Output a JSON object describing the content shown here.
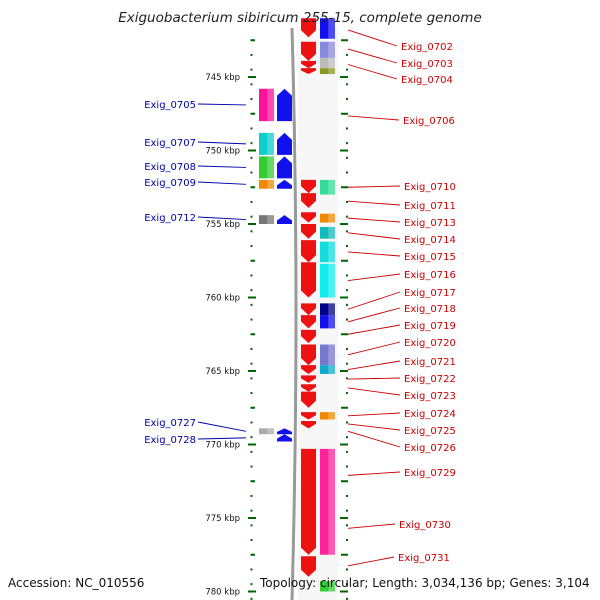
{
  "title": "Exiguobacterium sibiricum 255-15, complete genome",
  "accession_label": "Accession: NC_010556",
  "topology_label": "Topology: circular; Length: 3,034,136 bp; Genes: 3,104",
  "colors": {
    "reverse_label": "#cc0000",
    "forward_label": "#0000aa",
    "ruler": "#006400",
    "backbone": "#999999"
  },
  "scale": {
    "unit": "kbp",
    "ticks": [
      {
        "kbp": 745,
        "label": "745 kbp"
      },
      {
        "kbp": 750,
        "label": "750 kbp"
      },
      {
        "kbp": 755,
        "label": "755 kbp"
      },
      {
        "kbp": 760,
        "label": "760 kbp"
      },
      {
        "kbp": 765,
        "label": "765 kbp"
      },
      {
        "kbp": 770,
        "label": "770 kbp"
      },
      {
        "kbp": 775,
        "label": "775 kbp"
      },
      {
        "kbp": 780,
        "label": "780 kbp"
      }
    ]
  },
  "reverse_genes": [
    {
      "label": "Exig_0702",
      "start": 741.2,
      "end": 742.4,
      "color": "#1010ee"
    },
    {
      "label": "Exig_0703",
      "start": 742.6,
      "end": 743.6,
      "color": "#8888dd"
    },
    {
      "label": "Exig_0704",
      "start": 743.7,
      "end": 744.6,
      "color": "#bbbbbb"
    },
    {
      "label": "Exig_0706",
      "start": 747.4,
      "end": 747.9,
      "color": "#ee1111"
    },
    {
      "label": "Exig_0710",
      "start": 752.0,
      "end": 753.0,
      "color": "#33dd99"
    },
    {
      "label": "Exig_0711",
      "start": 753.0,
      "end": 753.9,
      "color": "#ee1111"
    },
    {
      "label": "Exig_0713",
      "start": 754.3,
      "end": 754.9,
      "color": "#ee8800"
    },
    {
      "label": "Exig_0714",
      "start": 755.2,
      "end": 756.0,
      "color": "#11bbbb"
    },
    {
      "label": "Exig_0715",
      "start": 756.2,
      "end": 757.6,
      "color": "#11dddd"
    },
    {
      "label": "Exig_0716",
      "start": 757.7,
      "end": 760.0,
      "color": "#11eeee"
    },
    {
      "label": "Exig_0717",
      "start": 760.4,
      "end": 761.2,
      "color": "#000088"
    },
    {
      "label": "Exig_0718",
      "start": 761.2,
      "end": 762.1,
      "color": "#1111ee"
    },
    {
      "label": "Exig_0719",
      "start": 762.2,
      "end": 762.8,
      "color": "#ee1111"
    },
    {
      "label": "Exig_0720",
      "start": 763.2,
      "end": 764.6,
      "color": "#7777cc"
    },
    {
      "label": "Exig_0721",
      "start": 764.6,
      "end": 765.2,
      "color": "#11aacc"
    },
    {
      "label": "Exig_0722",
      "start": 765.3,
      "end": 765.8,
      "color": "#ee1111"
    },
    {
      "label": "Exig_0723",
      "start": 765.9,
      "end": 766.4,
      "color": "#ee1111"
    },
    {
      "label": "Exig_0724",
      "start": 767.8,
      "end": 768.3,
      "color": "#ee8800"
    },
    {
      "label": "Exig_0725",
      "start": 768.4,
      "end": 768.8,
      "color": "#ee1111"
    },
    {
      "label": "Exig_0726",
      "start": 768.9,
      "end": 769.3,
      "color": "#ee1111"
    },
    {
      "label": "Exig_0729",
      "start": 770.3,
      "end": 773.9,
      "color": "#ee2222"
    },
    {
      "label": "Exig_0730",
      "start": 773.9,
      "end": 777.5,
      "color": "#ff2299"
    },
    {
      "label": "Exig_0731",
      "start": 777.6,
      "end": 778.9,
      "color": "#ee1111"
    }
  ],
  "forward_genes": [
    {
      "label": "Exig_0705",
      "start": 745.8,
      "end": 748.0,
      "color": "#ff1199"
    },
    {
      "label": "Exig_0707",
      "start": 748.8,
      "end": 750.3,
      "color": "#11cccc"
    },
    {
      "label": "Exig_0708",
      "start": 750.4,
      "end": 751.9,
      "color": "#33cc33"
    },
    {
      "label": "Exig_0709",
      "start": 752.0,
      "end": 752.6,
      "color": "#ee8800"
    },
    {
      "label": "Exig_0712",
      "start": 754.4,
      "end": 755.0,
      "color": "#777777"
    },
    {
      "label": "Exig_0727",
      "start": 768.9,
      "end": 769.3,
      "color": "#aaaaaa"
    },
    {
      "label": "Exig_0728",
      "start": 769.3,
      "end": 769.8,
      "color": "#aaaaaa"
    }
  ],
  "rows": {
    "reverse_column": [
      {
        "start": 741.0,
        "end": 742.3,
        "color": "#ee1111"
      },
      {
        "start": 742.6,
        "end": 743.9,
        "color": "#ee1111"
      },
      {
        "start": 743.9,
        "end": 744.4,
        "color": "#ee1111"
      },
      {
        "start": 744.4,
        "end": 744.8,
        "color": "#ee1111"
      },
      {
        "start": 752.0,
        "end": 752.9,
        "color": "#ee1111"
      },
      {
        "start": 752.9,
        "end": 753.9,
        "color": "#ee1111"
      },
      {
        "start": 754.2,
        "end": 754.9,
        "color": "#ee1111"
      },
      {
        "start": 755.0,
        "end": 756.0,
        "color": "#ee1111"
      },
      {
        "start": 756.1,
        "end": 757.6,
        "color": "#ee1111"
      },
      {
        "start": 757.6,
        "end": 760.0,
        "color": "#ee1111"
      },
      {
        "start": 760.4,
        "end": 761.2,
        "color": "#ee1111"
      },
      {
        "start": 761.2,
        "end": 762.1,
        "color": "#ee1111"
      },
      {
        "start": 762.2,
        "end": 763.1,
        "color": "#ee1111"
      },
      {
        "start": 763.2,
        "end": 764.6,
        "color": "#ee1111"
      },
      {
        "start": 764.6,
        "end": 765.2,
        "color": "#ee1111"
      },
      {
        "start": 765.3,
        "end": 765.8,
        "color": "#ee1111"
      },
      {
        "start": 765.9,
        "end": 766.4,
        "color": "#ee1111"
      },
      {
        "start": 766.4,
        "end": 767.5,
        "color": "#ee1111"
      },
      {
        "start": 767.8,
        "end": 768.3,
        "color": "#ee1111"
      },
      {
        "start": 768.4,
        "end": 768.9,
        "color": "#ee1111"
      },
      {
        "start": 770.3,
        "end": 777.5,
        "color": "#ee1111"
      },
      {
        "start": 777.6,
        "end": 779.0,
        "color": "#ee1111"
      }
    ],
    "reverse_color_column": [
      {
        "start": 741.0,
        "end": 742.4,
        "color": "#1010ee"
      },
      {
        "start": 742.6,
        "end": 743.7,
        "color": "#8888dd"
      },
      {
        "start": 743.7,
        "end": 744.4,
        "color": "#bbbbbb"
      },
      {
        "start": 744.4,
        "end": 744.8,
        "color": "#889922"
      },
      {
        "start": 752.0,
        "end": 753.0,
        "color": "#33dd99"
      },
      {
        "start": 754.3,
        "end": 754.9,
        "color": "#ee8800"
      },
      {
        "start": 755.2,
        "end": 756.0,
        "color": "#11bbbb"
      },
      {
        "start": 756.2,
        "end": 757.6,
        "color": "#11dddd"
      },
      {
        "start": 757.7,
        "end": 760.0,
        "color": "#11eeee"
      },
      {
        "start": 760.4,
        "end": 761.2,
        "color": "#000088"
      },
      {
        "start": 761.2,
        "end": 762.1,
        "color": "#1111ee"
      },
      {
        "start": 763.2,
        "end": 764.6,
        "color": "#7777cc"
      },
      {
        "start": 764.6,
        "end": 765.2,
        "color": "#11aacc"
      },
      {
        "start": 767.8,
        "end": 768.3,
        "color": "#ee8800"
      },
      {
        "start": 770.3,
        "end": 777.5,
        "color": "#ff2299"
      },
      {
        "start": 779.3,
        "end": 780.0,
        "color": "#33cc33"
      }
    ],
    "forward_color_column": [
      {
        "start": 745.8,
        "end": 748.0,
        "color": "#ff1199"
      },
      {
        "start": 748.8,
        "end": 750.3,
        "color": "#11cccc"
      },
      {
        "start": 750.4,
        "end": 751.9,
        "color": "#33cc33"
      },
      {
        "start": 752.0,
        "end": 752.6,
        "color": "#ee8800"
      },
      {
        "start": 754.4,
        "end": 755.0,
        "color": "#777777"
      },
      {
        "start": 768.9,
        "end": 769.3,
        "color": "#aaaaaa"
      }
    ],
    "forward_column": [
      {
        "start": 745.8,
        "end": 748.0,
        "color": "#1111ee"
      },
      {
        "start": 748.8,
        "end": 750.3,
        "color": "#1111ee"
      },
      {
        "start": 750.4,
        "end": 751.9,
        "color": "#1111ee"
      },
      {
        "start": 752.0,
        "end": 752.6,
        "color": "#1111ee"
      },
      {
        "start": 754.4,
        "end": 755.0,
        "color": "#1111ee"
      },
      {
        "start": 768.9,
        "end": 769.3,
        "color": "#1111ee"
      },
      {
        "start": 769.3,
        "end": 769.8,
        "color": "#1111ee"
      }
    ]
  }
}
